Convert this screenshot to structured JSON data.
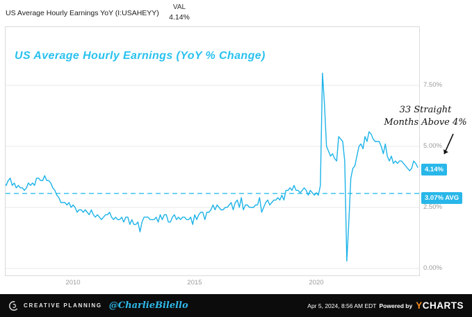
{
  "header": {
    "series_name": "US Average Hourly Earnings YoY (I:USAHEYY)",
    "val_label": "VAL",
    "val_value": "4.14%"
  },
  "chart": {
    "title": "US Average Hourly Earnings (YoY % Change)",
    "y_ticks": [
      "7.50%",
      "5.00%",
      "2.50%",
      "0.00%"
    ],
    "x_ticks": [
      "2010",
      "2015",
      "2020"
    ],
    "current_badge": "4.14%",
    "avg_badge": "3.07% AVG",
    "annotation_line1": "33 Straight",
    "annotation_line2": "Months Above 4%"
  },
  "colors": {
    "line": "#1cb3e8",
    "avg_line": "#3fc3ed",
    "badge": "#29b7e9",
    "grid": "#e9e9e9",
    "axis_text": "#9a9a9a",
    "title": "#29c1ef",
    "footer_bg": "#0c0c0c",
    "ycharts_orange": "#f68b1f"
  },
  "chart_data": {
    "type": "line",
    "title": "US Average Hourly Earnings (YoY % Change)",
    "series_id": "I:USAHEYY",
    "x_unit": "month",
    "start_label": "Mar 2007",
    "end_label": "Mar 2024",
    "x_start_decimal": 2007.17,
    "x_interval_years": 0.083333,
    "x_tick_values": [
      2010,
      2015,
      2020
    ],
    "y_tick_values": [
      0,
      2.5,
      5,
      7.5
    ],
    "y_tick_labels": [
      "0.00%",
      "2.50%",
      "5.00%",
      "7.50%"
    ],
    "ylim": [
      -0.3,
      9.9
    ],
    "xlim": [
      2007.1,
      2024.4
    ],
    "average": 3.07,
    "last_value": 4.14,
    "annotation": "33 Straight Months Above 4%",
    "legend_position": "none",
    "grid": true,
    "values": [
      3.5,
      3.4,
      3.6,
      3.7,
      3.4,
      3.5,
      3.3,
      3.4,
      3.3,
      3.3,
      3.2,
      3.3,
      3.5,
      3.4,
      3.5,
      3.4,
      3.7,
      3.7,
      3.6,
      3.6,
      3.8,
      3.6,
      3.6,
      3.5,
      3.3,
      3.2,
      3.0,
      2.9,
      2.7,
      2.7,
      2.7,
      2.6,
      2.7,
      2.5,
      2.6,
      2.5,
      2.3,
      2.4,
      2.4,
      2.3,
      2.4,
      2.3,
      2.2,
      2.4,
      2.2,
      2.1,
      2.2,
      2.1,
      2.0,
      2.1,
      2.2,
      2.2,
      2.3,
      2.1,
      2.0,
      2.1,
      2.0,
      2.0,
      2.1,
      1.9,
      2.1,
      2.1,
      1.8,
      2.0,
      1.8,
      1.8,
      1.9,
      1.5,
      1.9,
      2.1,
      2.1,
      2.1,
      2.0,
      2.0,
      2.0,
      2.1,
      1.9,
      2.2,
      2.0,
      2.2,
      2.2,
      1.9,
      1.9,
      2.1,
      2.2,
      2.0,
      2.1,
      2.0,
      2.1,
      2.1,
      2.0,
      2.0,
      2.1,
      1.8,
      2.2,
      2.0,
      2.2,
      2.3,
      2.3,
      2.0,
      2.3,
      2.3,
      2.4,
      2.6,
      2.4,
      2.6,
      2.5,
      2.4,
      2.4,
      2.5,
      2.5,
      2.6,
      2.7,
      2.4,
      2.7,
      2.8,
      2.5,
      2.9,
      2.4,
      2.6,
      2.6,
      2.5,
      2.5,
      2.5,
      2.6,
      2.6,
      2.9,
      2.3,
      2.5,
      2.7,
      2.8,
      2.6,
      2.7,
      2.8,
      2.8,
      2.9,
      2.8,
      3.0,
      2.8,
      3.2,
      3.2,
      3.3,
      3.2,
      3.4,
      3.2,
      3.2,
      3.1,
      3.2,
      3.3,
      3.2,
      3.0,
      3.2,
      3.1,
      3.0,
      3.1,
      3.0,
      3.4,
      8.0,
      6.7,
      5.0,
      4.8,
      4.6,
      4.7,
      4.5,
      4.4,
      5.4,
      5.3,
      5.2,
      4.4,
      0.3,
      1.9,
      3.7,
      4.1,
      4.2,
      4.6,
      5.0,
      5.1,
      4.9,
      5.4,
      5.2,
      5.6,
      5.5,
      5.3,
      5.2,
      5.2,
      5.2,
      5.0,
      4.7,
      5.1,
      4.6,
      4.4,
      4.6,
      4.3,
      4.4,
      4.3,
      4.4,
      4.4,
      4.3,
      4.2,
      4.1,
      4.0,
      4.1,
      4.4,
      4.3,
      4.14
    ]
  },
  "footer": {
    "brand": "CREATIVE PLANNING",
    "handle": "@CharlieBilello",
    "timestamp": "Apr 5, 2024, 8:56 AM EDT",
    "powered_by": "Powered by",
    "ycharts_y": "Y",
    "ycharts_rest": "CHARTS"
  }
}
